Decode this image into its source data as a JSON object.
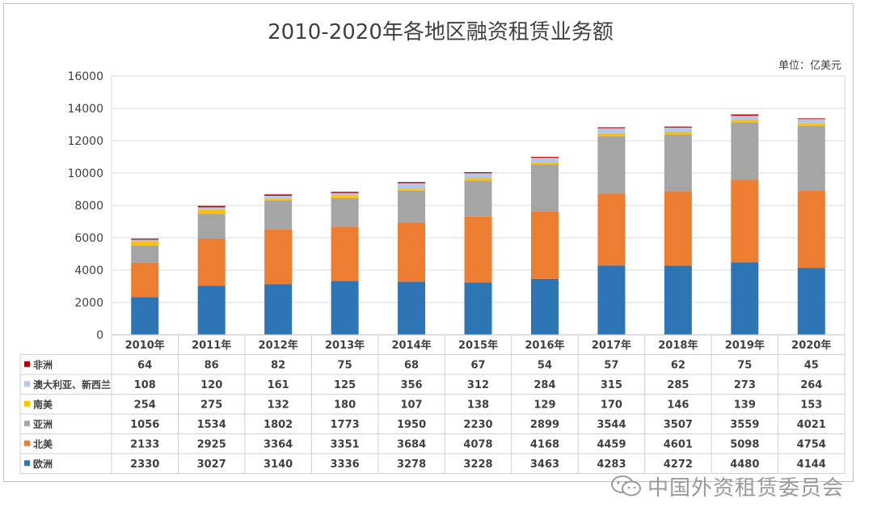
{
  "chart_data": {
    "type": "stacked-bar",
    "title": "2010-2020年各地区融资租赁业务额",
    "unit_label": "单位：亿美元",
    "categories": [
      "2010年",
      "2011年",
      "2012年",
      "2013年",
      "2014年",
      "2015年",
      "2016年",
      "2017年",
      "2018年",
      "2019年",
      "2020年"
    ],
    "ylim": [
      0,
      16000
    ],
    "yticks": [
      0,
      2000,
      4000,
      6000,
      8000,
      10000,
      12000,
      14000,
      16000
    ],
    "grid": true,
    "legend": "data-table",
    "series": [
      {
        "name": "欧洲",
        "color": "#2e75b6",
        "values": [
          2330,
          3027,
          3140,
          3336,
          3278,
          3228,
          3463,
          4283,
          4272,
          4480,
          4144
        ]
      },
      {
        "name": "北美",
        "color": "#ed7d31",
        "values": [
          2133,
          2925,
          3364,
          3351,
          3684,
          4078,
          4168,
          4459,
          4601,
          5098,
          4754
        ]
      },
      {
        "name": "亚洲",
        "color": "#a5a5a5",
        "values": [
          1056,
          1534,
          1802,
          1773,
          1950,
          2230,
          2899,
          3544,
          3507,
          3559,
          4021
        ]
      },
      {
        "name": "南美",
        "color": "#ffc000",
        "values": [
          254,
          275,
          132,
          180,
          107,
          138,
          129,
          170,
          146,
          139,
          153
        ]
      },
      {
        "name": "澳大利亚、新西兰",
        "color": "#b4c7e7",
        "values": [
          108,
          120,
          161,
          125,
          356,
          312,
          284,
          315,
          285,
          273,
          264
        ]
      },
      {
        "name": "非洲",
        "color": "#c00000",
        "values": [
          64,
          86,
          82,
          75,
          68,
          67,
          54,
          57,
          62,
          75,
          45
        ]
      }
    ]
  },
  "watermark": {
    "text": "中国外资租赁委员会",
    "icon": "wechat-icon"
  }
}
